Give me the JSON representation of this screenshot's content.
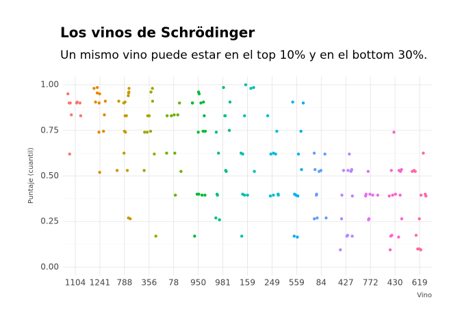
{
  "chart_data": {
    "type": "strip",
    "title": "Los vinos de Schrödinger",
    "subtitle": "Un mismo vino puede estar en el top 10% y en el bottom 30%.",
    "x_label": "Vino",
    "y_label": "Puntaje (cuantil)",
    "categories": [
      "1104",
      "1241",
      "788",
      "356",
      "78",
      "950",
      "981",
      "159",
      "249",
      "559",
      "84",
      "427",
      "772",
      "430",
      "619"
    ],
    "colors": [
      "#F8766D",
      "#E58700",
      "#C99800",
      "#A3A500",
      "#6BB100",
      "#00BA38",
      "#00BF7D",
      "#00C0AF",
      "#00BCD8",
      "#00B0F6",
      "#619CFF",
      "#B983FF",
      "#E76BF3",
      "#FD61D1",
      "#FF67A4"
    ],
    "values": [
      [
        0.95,
        0.9,
        0.9,
        0.9,
        0.9,
        0.905,
        0.83,
        0.835,
        0.62
      ],
      [
        0.985,
        0.98,
        0.95,
        0.955,
        0.9,
        0.905,
        0.91,
        0.835,
        0.745,
        0.74,
        0.52
      ],
      [
        0.98,
        0.96,
        0.955,
        0.94,
        0.91,
        0.905,
        0.9,
        0.83,
        0.83,
        0.745,
        0.74,
        0.625,
        0.53,
        0.53,
        0.27,
        0.265
      ],
      [
        0.98,
        0.96,
        0.91,
        0.83,
        0.83,
        0.745,
        0.74,
        0.74,
        0.62,
        0.53,
        0.17
      ],
      [
        0.9,
        0.835,
        0.835,
        0.83,
        0.83,
        0.625,
        0.625,
        0.525,
        0.395
      ],
      [
        0.96,
        0.95,
        0.905,
        0.9,
        0.9,
        0.9,
        0.83,
        0.745,
        0.745,
        0.74,
        0.4,
        0.4,
        0.395,
        0.395,
        0.17
      ],
      [
        0.985,
        0.905,
        0.83,
        0.83,
        0.75,
        0.74,
        0.625,
        0.53,
        0.525,
        0.4,
        0.395,
        0.27,
        0.26
      ],
      [
        1.0,
        0.985,
        0.98,
        0.83,
        0.625,
        0.62,
        0.525,
        0.4,
        0.395,
        0.395,
        0.17
      ],
      [
        0.83,
        0.745,
        0.625,
        0.62,
        0.62,
        0.4,
        0.4,
        0.395,
        0.395,
        0.39
      ],
      [
        0.905,
        0.9,
        0.745,
        0.62,
        0.535,
        0.4,
        0.395,
        0.39,
        0.17,
        0.165
      ],
      [
        0.625,
        0.62,
        0.535,
        0.53,
        0.525,
        0.4,
        0.395,
        0.27,
        0.27,
        0.265
      ],
      [
        0.62,
        0.53,
        0.525,
        0.53,
        0.535,
        0.395,
        0.39,
        0.265,
        0.175,
        0.17,
        0.17,
        0.095
      ],
      [
        0.525,
        0.4,
        0.4,
        0.395,
        0.395,
        0.39,
        0.265,
        0.26
      ],
      [
        0.74,
        0.535,
        0.53,
        0.525,
        0.53,
        0.4,
        0.395,
        0.395,
        0.39,
        0.265,
        0.175,
        0.17,
        0.165,
        0.095
      ],
      [
        0.625,
        0.53,
        0.525,
        0.525,
        0.4,
        0.395,
        0.39,
        0.265,
        0.175,
        0.1,
        0.095,
        0.1
      ]
    ],
    "ylim": [
      -0.045,
      1.045
    ],
    "yticks": [
      {
        "value": 0,
        "label": "0.00"
      },
      {
        "value": 0.25,
        "label": "0.25"
      },
      {
        "value": 0.5,
        "label": "0.50"
      },
      {
        "value": 0.75,
        "label": "0.75"
      },
      {
        "value": 1,
        "label": "1.00"
      }
    ],
    "grid": true
  }
}
